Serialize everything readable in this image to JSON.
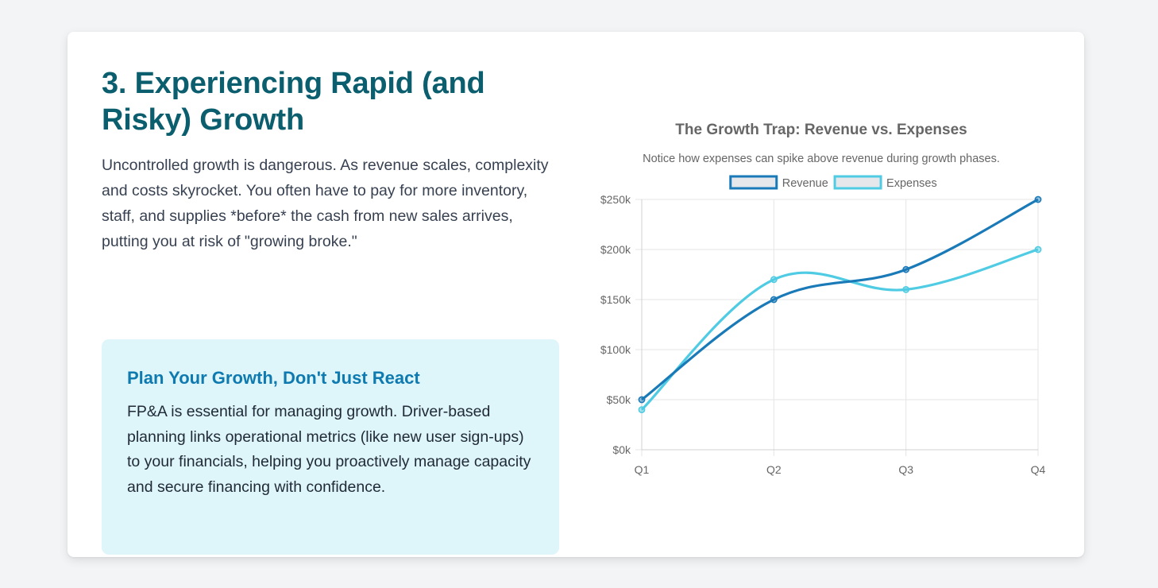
{
  "section": {
    "heading": "3. Experiencing Rapid (and Risky) Growth",
    "intro": "Uncontrolled growth is dangerous. As revenue scales, complexity and costs skyrocket. You often have to pay for more inventory, staff, and supplies *before* the cash from new sales arrives, putting you at risk of \"growing broke.\""
  },
  "callout": {
    "title": "Plan Your Growth, Don't Just React",
    "body": "FP&A is essential for managing growth. Driver-based planning links operational metrics (like new user sign-ups) to your financials, helping you proactively manage capacity and secure financing with confidence."
  },
  "chart_data": {
    "type": "line",
    "title": "The Growth Trap: Revenue vs. Expenses",
    "subtitle": "Notice how expenses can spike above revenue during growth phases.",
    "categories": [
      "Q1",
      "Q2",
      "Q3",
      "Q4"
    ],
    "series": [
      {
        "name": "Revenue",
        "values": [
          50000,
          150000,
          180000,
          250000
        ],
        "color": "#1a7ab8"
      },
      {
        "name": "Expenses",
        "values": [
          40000,
          170000,
          160000,
          200000
        ],
        "color": "#4fcbe3"
      }
    ],
    "ylim": [
      0,
      250000
    ],
    "yticks": [
      {
        "value": 0,
        "label": "$0k"
      },
      {
        "value": 50000,
        "label": "$50k"
      },
      {
        "value": 100000,
        "label": "$100k"
      },
      {
        "value": 150000,
        "label": "$150k"
      },
      {
        "value": 200000,
        "label": "$200k"
      },
      {
        "value": 250000,
        "label": "$250k"
      }
    ],
    "xlabel": "",
    "ylabel": "",
    "grid": true,
    "legend_position": "top"
  },
  "colors": {
    "heading": "#0b5e6e",
    "callout_title": "#0e7ab0",
    "callout_bg": "#def5f9"
  }
}
